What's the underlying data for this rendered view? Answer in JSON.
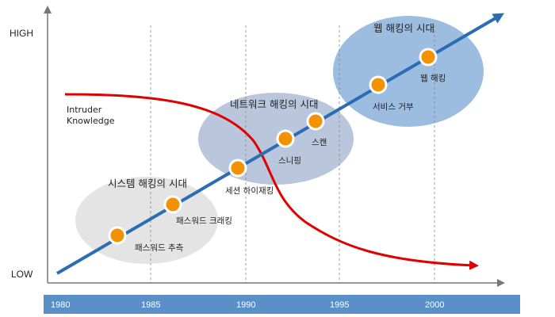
{
  "axis": {
    "y_high": "HIGH",
    "y_low": "LOW"
  },
  "years": [
    "1980",
    "1985",
    "1990",
    "1995",
    "2000"
  ],
  "eras": [
    {
      "label": "시스템 해킹의 시대",
      "color": "#e4e4e4"
    },
    {
      "label": "네트워크 해킹의 시대",
      "color": "#b9c6dc"
    },
    {
      "label": "웹 해킹의 시대",
      "color": "#9cbce0"
    }
  ],
  "milestones": [
    {
      "label": "패스워드 추측"
    },
    {
      "label": "패스워드 크래킹"
    },
    {
      "label": "세션 하이재킹"
    },
    {
      "label": "스니핑"
    },
    {
      "label": "스캔"
    },
    {
      "label": "서비스 거부"
    },
    {
      "label": "웹 해킹"
    }
  ],
  "intruder_knowledge": {
    "line1": "Intruder",
    "line2": "Knowledge",
    "color": "#e00000"
  },
  "colors": {
    "trend_line": "#2a6db3",
    "timeline_bar": "#5b8fc8",
    "dot_fill": "#f39200",
    "axis": "#777777"
  }
}
